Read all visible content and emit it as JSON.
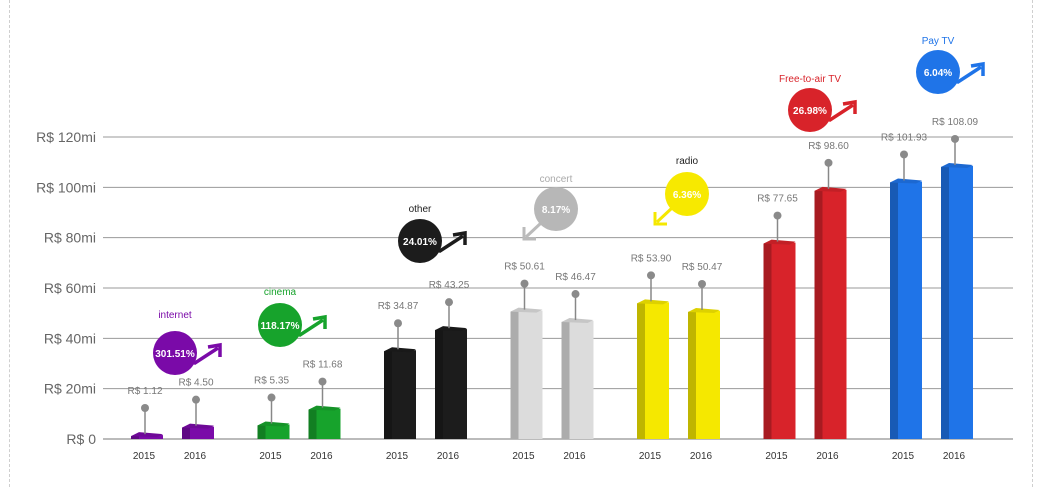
{
  "chart_data": {
    "type": "bar",
    "title": "",
    "xlabel": "",
    "ylabel": "",
    "ylim": [
      0,
      120
    ],
    "yticks": [
      {
        "value": 0,
        "label": "R$ 0"
      },
      {
        "value": 20,
        "label": "R$ 20mi"
      },
      {
        "value": 40,
        "label": "R$ 40mi"
      },
      {
        "value": 60,
        "label": "R$ 60mi"
      },
      {
        "value": 80,
        "label": "R$ 80mi"
      },
      {
        "value": 100,
        "label": "R$ 100mi"
      },
      {
        "value": 120,
        "label": "R$ 120mi"
      }
    ],
    "years": [
      "2015",
      "2016"
    ],
    "grid": true,
    "groups": [
      {
        "category": "internet",
        "color": "#7a0aa8",
        "label_color": "#7a0aa8",
        "values": [
          1.12,
          4.5
        ],
        "value_labels": [
          "R$ 1.12",
          "R$ 4.50"
        ],
        "change": "301.51%",
        "direction": "up"
      },
      {
        "category": "cinema",
        "color": "#17a32c",
        "label_color": "#17a32c",
        "values": [
          5.35,
          11.68
        ],
        "value_labels": [
          "R$ 5.35",
          "R$ 11.68"
        ],
        "change": "118.17%",
        "direction": "up"
      },
      {
        "category": "other",
        "color": "#1c1c1c",
        "label_color": "#1c1c1c",
        "values": [
          34.87,
          43.25
        ],
        "value_labels": [
          "R$ 34.87",
          "R$ 43.25"
        ],
        "change": "24.01%",
        "direction": "up"
      },
      {
        "category": "concert",
        "color": "#dcdcdc",
        "label_color": "#aaaaaa",
        "values": [
          50.61,
          46.47
        ],
        "value_labels": [
          "R$ 50.61",
          "R$ 46.47"
        ],
        "change": "8.17%",
        "direction": "down"
      },
      {
        "category": "radio",
        "color": "#f5e800",
        "label_color": "#1c1c1c",
        "values": [
          53.9,
          50.47
        ],
        "value_labels": [
          "R$ 53.90",
          "R$ 50.47"
        ],
        "change": "6.36%",
        "direction": "down"
      },
      {
        "category": "Free-to-air TV",
        "color": "#d8232a",
        "label_color": "#d8232a",
        "values": [
          77.65,
          98.6
        ],
        "value_labels": [
          "R$ 77.65",
          "R$ 98.60"
        ],
        "change": "26.98%",
        "direction": "up"
      },
      {
        "category": "Pay TV",
        "color": "#1f74e8",
        "label_color": "#1f74e8",
        "values": [
          101.93,
          108.09
        ],
        "value_labels": [
          "R$ 101.93",
          "R$ 108.09"
        ],
        "change": "6.04%",
        "direction": "up"
      }
    ]
  }
}
